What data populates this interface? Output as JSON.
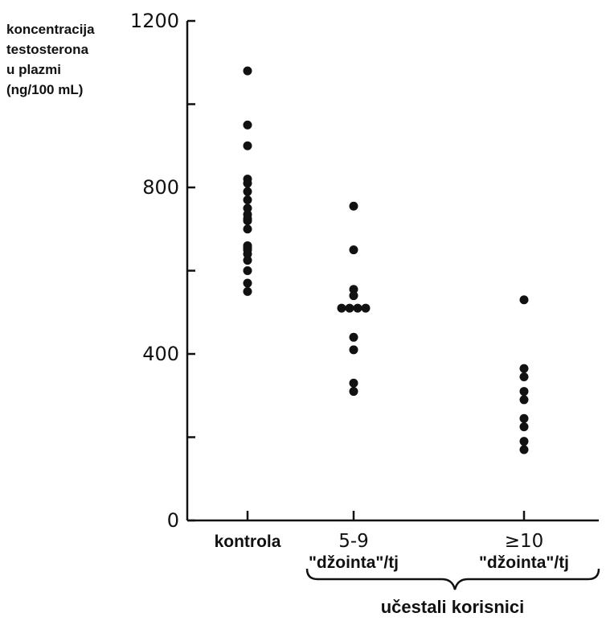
{
  "chart_data": {
    "type": "scatter",
    "ylabel_lines": [
      "koncentracija",
      "testosterona",
      "u plazmi",
      "(ng/100 mL)"
    ],
    "ylim": [
      0,
      1200
    ],
    "yticks_labeled": [
      "1200",
      "800",
      "400",
      "0"
    ],
    "yticks_values_labeled": [
      1200,
      800,
      400,
      0
    ],
    "yticks_minor": [
      1000,
      600,
      200
    ],
    "categories": [
      {
        "id": "kontrola",
        "lines": [
          "kontrola"
        ]
      },
      {
        "id": "5-9",
        "lines": [
          "5-9",
          "\"džointa\"/tj"
        ]
      },
      {
        "id": "ge10",
        "lines": [
          "≥10",
          "\"džointa\"/tj"
        ]
      }
    ],
    "group_label": "učestali korisnici",
    "series": [
      {
        "category": "kontrola",
        "values": [
          1080,
          950,
          900,
          820,
          810,
          790,
          770,
          750,
          735,
          725,
          720,
          700,
          660,
          655,
          650,
          640,
          625,
          600,
          570,
          550
        ]
      },
      {
        "category": "5-9",
        "values": [
          755,
          650,
          555,
          540,
          510,
          510,
          510,
          510,
          440,
          410,
          330,
          310
        ]
      },
      {
        "category": "ge10",
        "values": [
          530,
          365,
          345,
          310,
          290,
          245,
          225,
          190,
          170
        ]
      }
    ],
    "grid": false,
    "marker_color": "#111111"
  }
}
